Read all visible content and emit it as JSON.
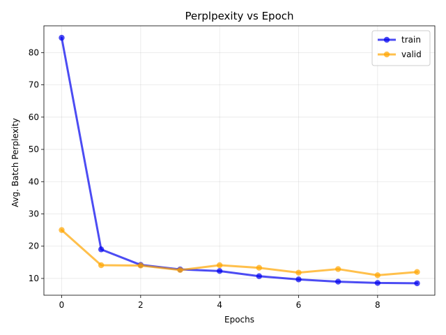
{
  "chart_data": {
    "type": "line",
    "title": "Perplpexity vs Epoch",
    "xlabel": "Epochs",
    "ylabel": "Avg. Batch Perplexity",
    "x": [
      0,
      1,
      2,
      3,
      4,
      5,
      6,
      7,
      8,
      9
    ],
    "xlim": [
      -0.45,
      9.45
    ],
    "ylim": [
      4.8,
      88.3
    ],
    "xticks": [
      0,
      2,
      4,
      6,
      8
    ],
    "yticks": [
      10,
      20,
      30,
      40,
      50,
      60,
      70,
      80
    ],
    "grid": true,
    "legend_position": "top-right",
    "series": [
      {
        "name": "train",
        "color": "#0000ee",
        "values": [
          84.6,
          19.0,
          14.2,
          12.8,
          12.3,
          10.7,
          9.7,
          9.0,
          8.6,
          8.5
        ]
      },
      {
        "name": "valid",
        "color": "#ffa500",
        "values": [
          25.0,
          14.1,
          14.0,
          12.6,
          14.1,
          13.3,
          11.8,
          12.9,
          11.0,
          12.0
        ]
      }
    ]
  }
}
